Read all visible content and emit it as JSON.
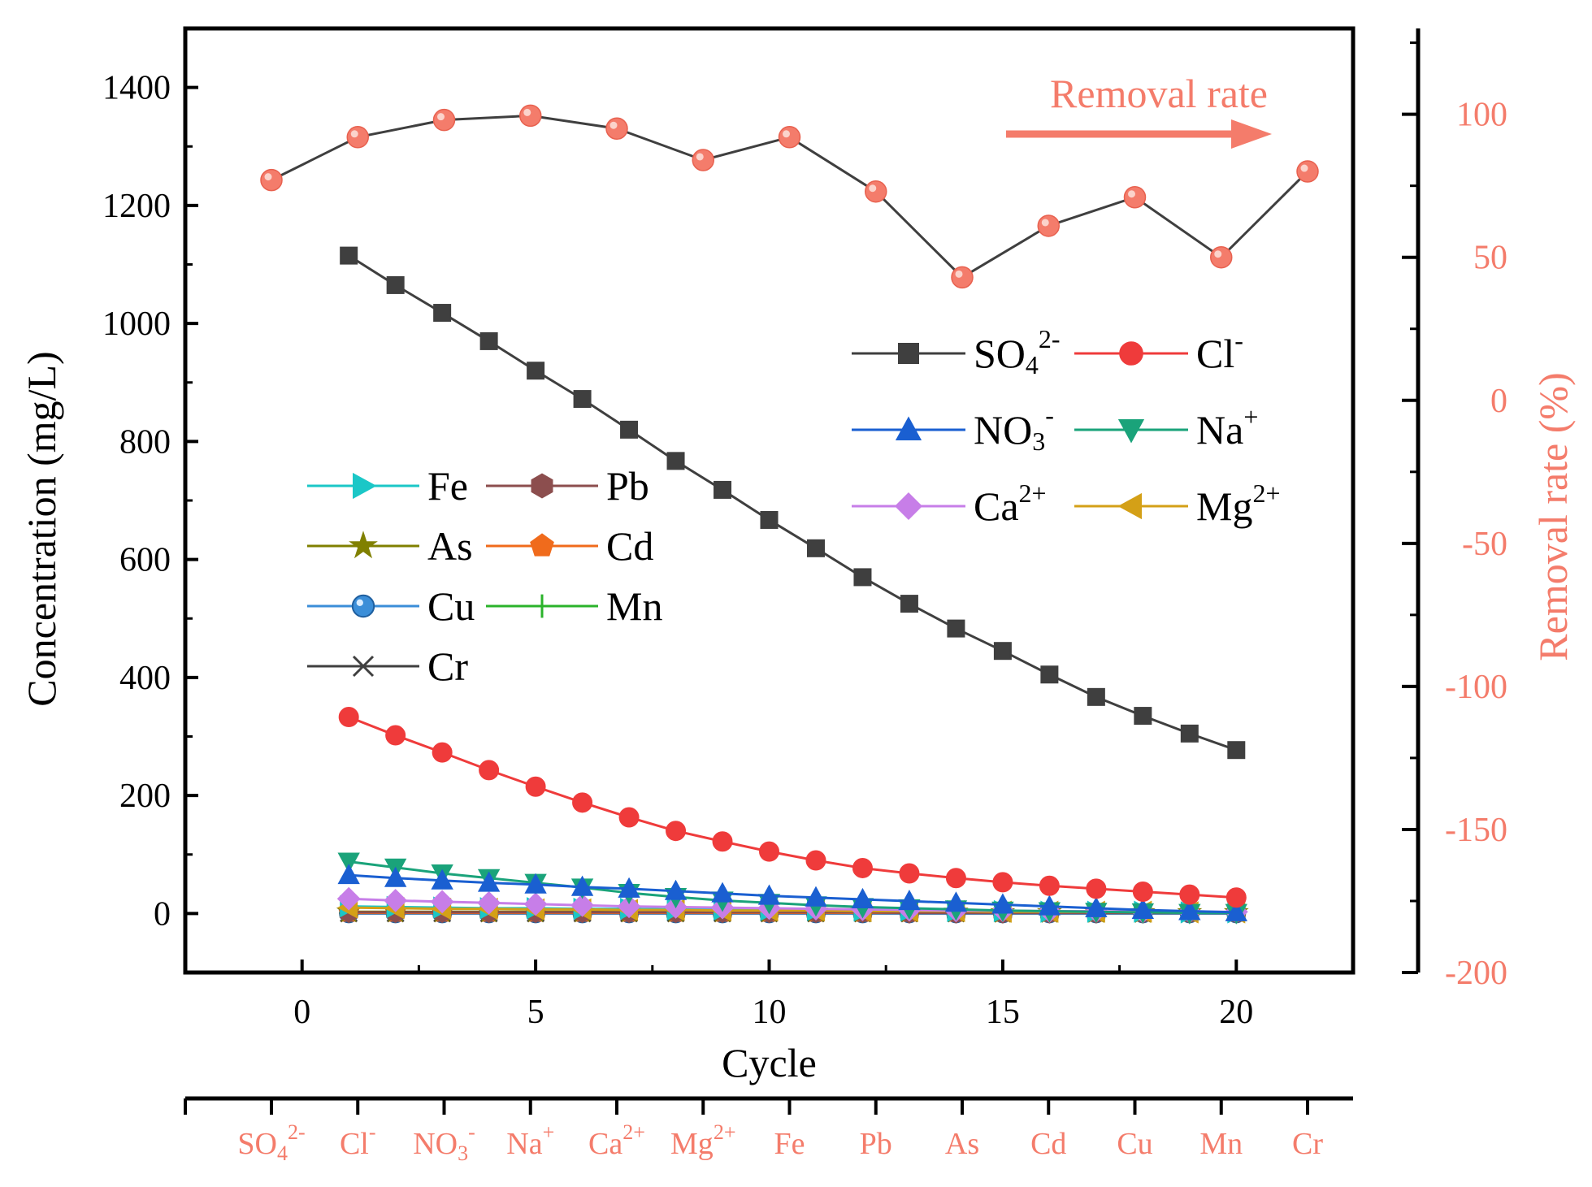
{
  "chart_data": {
    "type": "line",
    "xlabel": "Cycle",
    "ylabel": "Concentration (mg/L)",
    "y2label": "Removal rate (%)",
    "xlim": [
      -2.5,
      22.5
    ],
    "ylim": [
      -100,
      1500
    ],
    "y2lim": [
      -200,
      130
    ],
    "xticks": [
      "0",
      "5",
      "10",
      "15",
      "20"
    ],
    "yticks": [
      "0",
      "200",
      "400",
      "600",
      "800",
      "1000",
      "1200",
      "1400"
    ],
    "y2ticks": [
      "-200",
      "-150",
      "-100",
      "-50",
      "0",
      "50",
      "100"
    ],
    "cycles": [
      1,
      2,
      3,
      4,
      5,
      6,
      7,
      8,
      9,
      10,
      11,
      12,
      13,
      14,
      15,
      16,
      17,
      18,
      19,
      20
    ],
    "series": [
      {
        "name": "SO4 2-",
        "label": "SO",
        "sub": "4",
        "sup": "2-",
        "color": "#3f3f3f",
        "marker": "square",
        "values": [
          1115,
          1065,
          1018,
          970,
          920,
          872,
          820,
          767,
          718,
          667,
          619,
          570,
          525,
          483,
          445,
          405,
          367,
          335,
          305,
          277
        ]
      },
      {
        "name": "Cl-",
        "label": "Cl",
        "sup": "-",
        "color": "#ef3b3b",
        "marker": "circle",
        "values": [
          333,
          302,
          273,
          243,
          215,
          188,
          163,
          140,
          122,
          105,
          90,
          77,
          68,
          60,
          53,
          47,
          42,
          37,
          32,
          27
        ]
      },
      {
        "name": "NO3-",
        "label": "NO",
        "sub": "3",
        "sup": "-",
        "color": "#1a5fd1",
        "marker": "triangle-up",
        "values": [
          65,
          60,
          56,
          52,
          49,
          45,
          42,
          38,
          34,
          30,
          27,
          24,
          21,
          18,
          15,
          12,
          9,
          6,
          4,
          2
        ]
      },
      {
        "name": "Na+",
        "label": "Na",
        "sup": "+",
        "color": "#1aa37a",
        "marker": "triangle-down",
        "values": [
          88,
          78,
          68,
          60,
          52,
          44,
          35,
          28,
          22,
          18,
          14,
          11,
          9,
          7,
          5,
          4,
          3,
          2,
          1,
          1
        ]
      },
      {
        "name": "Ca2+",
        "label": "Ca",
        "sup": "2+",
        "color": "#c77ee8",
        "marker": "diamond",
        "values": [
          25,
          22,
          20,
          18,
          16,
          14,
          12,
          11,
          10,
          9,
          8,
          7,
          6,
          5,
          5,
          4,
          4,
          3,
          3,
          3
        ]
      },
      {
        "name": "Mg2+",
        "label": "Mg",
        "sup": "2+",
        "color": "#d4a017",
        "marker": "triangle-left",
        "values": [
          10,
          9,
          8,
          8,
          7,
          7,
          6,
          6,
          5,
          5,
          5,
          4,
          4,
          4,
          3,
          3,
          3,
          3,
          2,
          2
        ]
      },
      {
        "name": "Fe",
        "label": "Fe",
        "color": "#1bc7c7",
        "marker": "triangle-right",
        "values": [
          12,
          11,
          10,
          9,
          9,
          8,
          8,
          7,
          7,
          6,
          6,
          5,
          5,
          4,
          4,
          3,
          3,
          3,
          2,
          2
        ]
      },
      {
        "name": "Pb",
        "label": "Pb",
        "color": "#8c4e4e",
        "marker": "hexagon",
        "values": [
          2,
          2,
          2,
          2,
          2,
          2,
          2,
          2,
          2,
          2,
          2,
          2,
          1,
          1,
          1,
          1,
          1,
          1,
          1,
          1
        ]
      },
      {
        "name": "As",
        "label": "As",
        "color": "#808000",
        "marker": "star",
        "values": [
          3,
          3,
          3,
          3,
          3,
          3,
          3,
          3,
          3,
          3,
          3,
          3,
          3,
          3,
          2,
          2,
          2,
          2,
          2,
          2
        ]
      },
      {
        "name": "Cd",
        "label": "Cd",
        "color": "#f06b1c",
        "marker": "pentagon",
        "values": [
          1,
          1,
          1,
          1,
          1,
          1,
          1,
          1,
          1,
          1,
          1,
          1,
          1,
          1,
          1,
          1,
          1,
          1,
          1,
          1
        ]
      },
      {
        "name": "Cu",
        "label": "Cu",
        "color": "#3b8ed8",
        "marker": "sphere",
        "values": [
          0,
          0,
          0,
          0,
          0,
          0,
          0,
          0,
          0,
          0,
          0,
          0,
          0,
          0,
          0,
          0,
          0,
          0,
          0,
          0
        ]
      },
      {
        "name": "Mn",
        "label": "Mn",
        "color": "#2bb32b",
        "marker": "plus",
        "values": [
          1,
          1,
          1,
          1,
          1,
          1,
          1,
          1,
          1,
          1,
          1,
          1,
          1,
          1,
          1,
          1,
          1,
          1,
          1,
          1
        ]
      },
      {
        "name": "Cr",
        "label": "Cr",
        "color": "#3f3f3f",
        "marker": "x",
        "values": [
          0,
          0,
          0,
          0,
          0,
          0,
          0,
          0,
          0,
          0,
          0,
          0,
          0,
          0,
          0,
          0,
          0,
          0,
          0,
          0
        ]
      }
    ],
    "removal_rate": {
      "name": "Removal rate",
      "annotation": "Removal rate",
      "color": "#f47c6b",
      "line_color": "#3f3f3f",
      "categories": [
        {
          "label": "SO",
          "sub": "4",
          "sup": "2-"
        },
        {
          "label": "Cl",
          "sup": "-"
        },
        {
          "label": "NO",
          "sub": "3",
          "sup": "-"
        },
        {
          "label": "Na",
          "sup": "+"
        },
        {
          "label": "Ca",
          "sup": "2+"
        },
        {
          "label": "Mg",
          "sup": "2+"
        },
        {
          "label": "Fe"
        },
        {
          "label": "Pb"
        },
        {
          "label": "As"
        },
        {
          "label": "Cd"
        },
        {
          "label": "Cu"
        },
        {
          "label": "Mn"
        },
        {
          "label": "Cr"
        }
      ],
      "values": [
        77,
        92,
        98,
        99.5,
        95,
        84,
        92,
        73,
        43,
        61,
        71,
        50,
        80
      ]
    },
    "legend_groups": [
      {
        "placement": "upper-right",
        "series": [
          "SO4 2-",
          "Cl-",
          "NO3-",
          "Na+",
          "Ca2+",
          "Mg2+"
        ]
      },
      {
        "placement": "middle-left",
        "series": [
          "Fe",
          "Pb",
          "As",
          "Cd",
          "Cu",
          "Mn",
          "Cr"
        ]
      }
    ]
  }
}
